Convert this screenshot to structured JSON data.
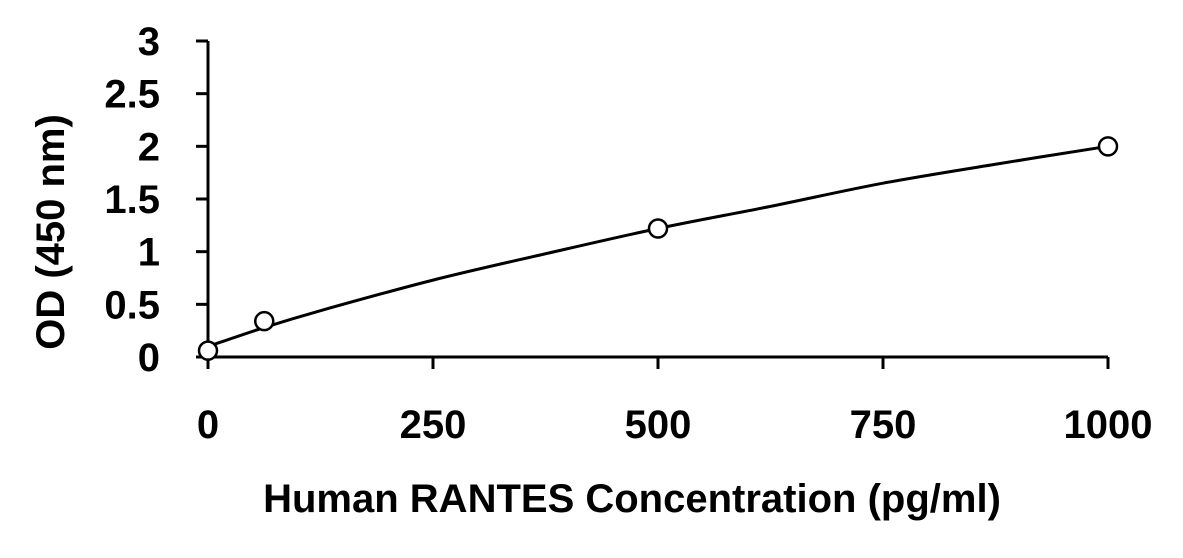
{
  "chart_data": {
    "type": "scatter",
    "xlabel": "Human RANTES Concentration (pg/ml)",
    "ylabel": "OD (450 nm)",
    "xlim": [
      0,
      1000
    ],
    "ylim": [
      0,
      3
    ],
    "xticks": [
      "0",
      "250",
      "500",
      "750",
      "1000"
    ],
    "yticks": [
      "0",
      "0.5",
      "1",
      "1.5",
      "2",
      "2.5",
      "3"
    ],
    "xtick_values": [
      0,
      250,
      500,
      750,
      1000
    ],
    "ytick_values": [
      0,
      0.5,
      1,
      1.5,
      2,
      2.5,
      3
    ],
    "grid": false,
    "series": [
      {
        "points": [
          {
            "x": 0,
            "y": 0.06
          },
          {
            "x": 62.5,
            "y": 0.34
          },
          {
            "x": 500,
            "y": 1.22
          },
          {
            "x": 1000,
            "y": 2.0
          }
        ]
      }
    ],
    "fit_curve": [
      {
        "x": 0,
        "y": 0.1
      },
      {
        "x": 62.5,
        "y": 0.28
      },
      {
        "x": 125,
        "y": 0.44
      },
      {
        "x": 250,
        "y": 0.73
      },
      {
        "x": 375,
        "y": 0.98
      },
      {
        "x": 500,
        "y": 1.22
      },
      {
        "x": 625,
        "y": 1.43
      },
      {
        "x": 750,
        "y": 1.65
      },
      {
        "x": 875,
        "y": 1.83
      },
      {
        "x": 1000,
        "y": 2.0
      }
    ],
    "colors": {
      "line": "#000000",
      "marker_fill": "#ffffff",
      "background": "#ffffff"
    }
  }
}
